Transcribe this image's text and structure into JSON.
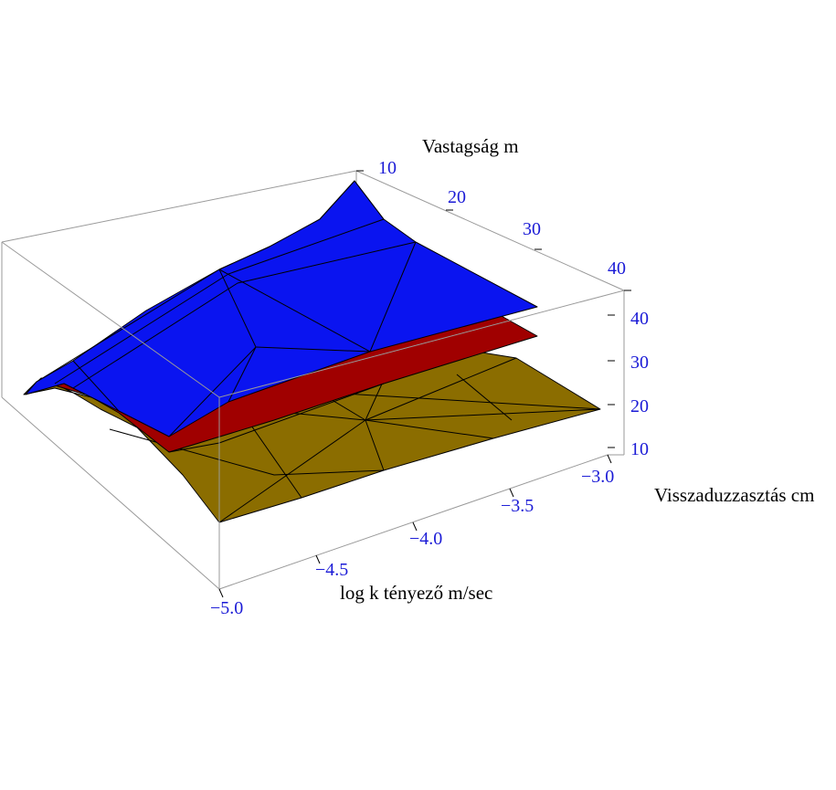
{
  "chart_data": {
    "type": "surface3d",
    "title": "",
    "axes": {
      "x": {
        "label": "log k tényező m/sec",
        "ticks": [
          "−5.0",
          "−4.5",
          "−4.0",
          "−3.5",
          "−3.0"
        ],
        "values": [
          -5.0,
          -4.5,
          -4.0,
          -3.5,
          -3.0
        ]
      },
      "y": {
        "label": "Vastagság m",
        "ticks": [
          "10",
          "20",
          "30",
          "40"
        ],
        "values": [
          10,
          20,
          30,
          40
        ]
      },
      "z": {
        "label": "Visszaduzzasztás cm",
        "ticks": [
          "10",
          "20",
          "30",
          "40"
        ],
        "values": [
          10,
          20,
          30,
          40
        ]
      }
    },
    "series": [
      {
        "color": "#8b6d00",
        "surface": "lower"
      },
      {
        "color": "#a00000",
        "surface": "middle"
      },
      {
        "color": "#0a14f0",
        "surface": "upper"
      }
    ]
  }
}
